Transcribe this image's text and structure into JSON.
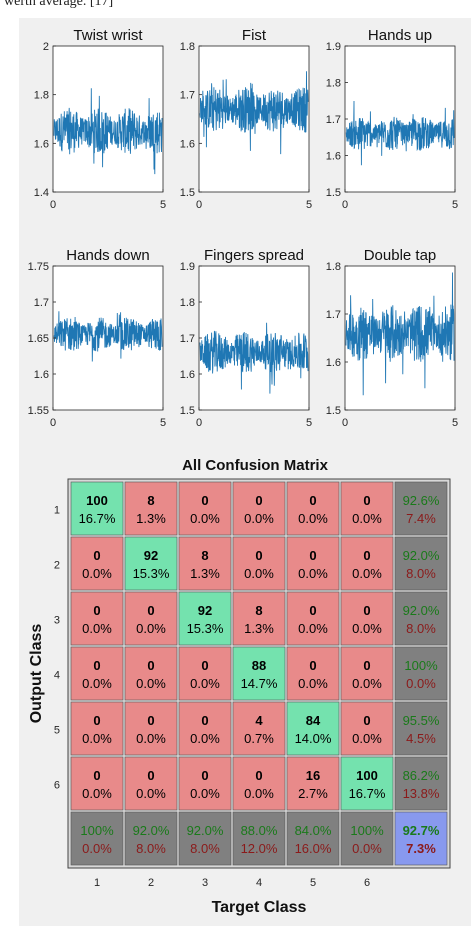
{
  "caption": "werth average. [17]",
  "colors": {
    "signal": "#1f77b4",
    "diag": "#74e2ae",
    "offdiag": "#e88a8a",
    "summary": "#808080",
    "total": "#8899ee",
    "green_text": "#1a7a1a",
    "red_text": "#8b1a1a"
  },
  "chart_data": [
    {
      "type": "line",
      "title": "Twist wrist",
      "xlim": [
        0,
        5
      ],
      "ylim": [
        1.4,
        2
      ],
      "xticks": [
        "0",
        "5"
      ],
      "yticks": [
        "1.4",
        "1.6",
        "1.8",
        "2"
      ],
      "mean": 1.65,
      "noise_amplitude": 0.08
    },
    {
      "type": "line",
      "title": "Fist",
      "xlim": [
        0,
        5
      ],
      "ylim": [
        1.5,
        1.8
      ],
      "xticks": [
        "0",
        "5"
      ],
      "yticks": [
        "1.5",
        "1.6",
        "1.7",
        "1.8"
      ],
      "mean": 1.67,
      "noise_amplitude": 0.04
    },
    {
      "type": "line",
      "title": "Hands up",
      "xlim": [
        0,
        5
      ],
      "ylim": [
        1.5,
        1.9
      ],
      "xticks": [
        "0",
        "5"
      ],
      "yticks": [
        "1.5",
        "1.6",
        "1.7",
        "1.8",
        "1.9"
      ],
      "mean": 1.66,
      "noise_amplitude": 0.04
    },
    {
      "type": "line",
      "title": "Hands down",
      "xlim": [
        0,
        5
      ],
      "ylim": [
        1.55,
        1.75
      ],
      "xticks": [
        "0",
        "5"
      ],
      "yticks": [
        "1.55",
        "1.6",
        "1.65",
        "1.7",
        "1.75"
      ],
      "mean": 1.655,
      "noise_amplitude": 0.02
    },
    {
      "type": "line",
      "title": "Fingers spread",
      "xlim": [
        0,
        5
      ],
      "ylim": [
        1.5,
        1.9
      ],
      "xticks": [
        "0",
        "5"
      ],
      "yticks": [
        "1.5",
        "1.6",
        "1.7",
        "1.8",
        "1.9"
      ],
      "mean": 1.66,
      "noise_amplitude": 0.05
    },
    {
      "type": "line",
      "title": "Double tap",
      "xlim": [
        0,
        5
      ],
      "ylim": [
        1.5,
        1.8
      ],
      "xticks": [
        "0",
        "5"
      ],
      "yticks": [
        "1.5",
        "1.6",
        "1.7",
        "1.8"
      ],
      "mean": 1.66,
      "noise_amplitude": 0.05
    },
    {
      "type": "heatmap",
      "title": "All Confusion Matrix",
      "xlabel": "Target Class",
      "ylabel": "Output Class",
      "categories": [
        "1",
        "2",
        "3",
        "4",
        "5",
        "6"
      ],
      "counts": [
        [
          100,
          8,
          0,
          0,
          0,
          0
        ],
        [
          0,
          92,
          8,
          0,
          0,
          0
        ],
        [
          0,
          0,
          92,
          8,
          0,
          0
        ],
        [
          0,
          0,
          0,
          88,
          0,
          0
        ],
        [
          0,
          0,
          0,
          4,
          84,
          0
        ],
        [
          0,
          0,
          0,
          0,
          16,
          100
        ]
      ],
      "percents": [
        [
          "16.7%",
          "1.3%",
          "0.0%",
          "0.0%",
          "0.0%",
          "0.0%"
        ],
        [
          "0.0%",
          "15.3%",
          "1.3%",
          "0.0%",
          "0.0%",
          "0.0%"
        ],
        [
          "0.0%",
          "0.0%",
          "15.3%",
          "1.3%",
          "0.0%",
          "0.0%"
        ],
        [
          "0.0%",
          "0.0%",
          "0.0%",
          "14.7%",
          "0.0%",
          "0.0%"
        ],
        [
          "0.0%",
          "0.0%",
          "0.0%",
          "0.7%",
          "14.0%",
          "0.0%"
        ],
        [
          "0.0%",
          "0.0%",
          "0.0%",
          "0.0%",
          "2.7%",
          "16.7%"
        ]
      ],
      "row_summary": [
        [
          "92.6%",
          "7.4%"
        ],
        [
          "92.0%",
          "8.0%"
        ],
        [
          "92.0%",
          "8.0%"
        ],
        [
          "100%",
          "0.0%"
        ],
        [
          "95.5%",
          "4.5%"
        ],
        [
          "86.2%",
          "13.8%"
        ]
      ],
      "col_summary": [
        [
          "100%",
          "0.0%"
        ],
        [
          "92.0%",
          "8.0%"
        ],
        [
          "92.0%",
          "8.0%"
        ],
        [
          "88.0%",
          "12.0%"
        ],
        [
          "84.0%",
          "16.0%"
        ],
        [
          "100%",
          "0.0%"
        ]
      ],
      "total": [
        "92.7%",
        "7.3%"
      ]
    }
  ]
}
